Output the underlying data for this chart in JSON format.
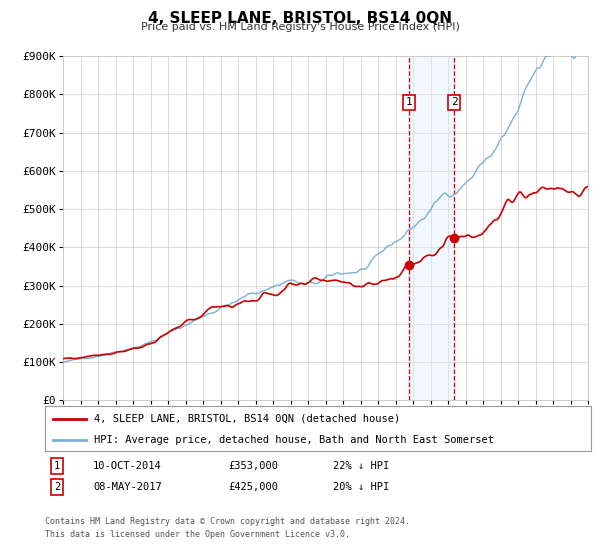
{
  "title": "4, SLEEP LANE, BRISTOL, BS14 0QN",
  "subtitle": "Price paid vs. HM Land Registry's House Price Index (HPI)",
  "legend_label_red": "4, SLEEP LANE, BRISTOL, BS14 0QN (detached house)",
  "legend_label_blue": "HPI: Average price, detached house, Bath and North East Somerset",
  "sale1_label": "1",
  "sale1_date": "10-OCT-2014",
  "sale1_price": "£353,000",
  "sale1_hpi": "22% ↓ HPI",
  "sale1_year": 2014.78,
  "sale1_value": 353000,
  "sale2_label": "2",
  "sale2_date": "08-MAY-2017",
  "sale2_price": "£425,000",
  "sale2_hpi": "20% ↓ HPI",
  "sale2_year": 2017.36,
  "sale2_value": 425000,
  "red_color": "#cc0000",
  "blue_color": "#7bafd4",
  "shade_color": "#ddeeff",
  "vline_color": "#cc0000",
  "grid_color": "#cccccc",
  "background_color": "#ffffff",
  "ylim": [
    0,
    900000
  ],
  "yticks": [
    0,
    100000,
    200000,
    300000,
    400000,
    500000,
    600000,
    700000,
    800000,
    900000
  ],
  "ytick_labels": [
    "£0",
    "£100K",
    "£200K",
    "£300K",
    "£400K",
    "£500K",
    "£600K",
    "£700K",
    "£800K",
    "£900K"
  ],
  "xlim_start": 1995,
  "xlim_end": 2025,
  "footnote_line1": "Contains HM Land Registry data © Crown copyright and database right 2024.",
  "footnote_line2": "This data is licensed under the Open Government Licence v3.0."
}
